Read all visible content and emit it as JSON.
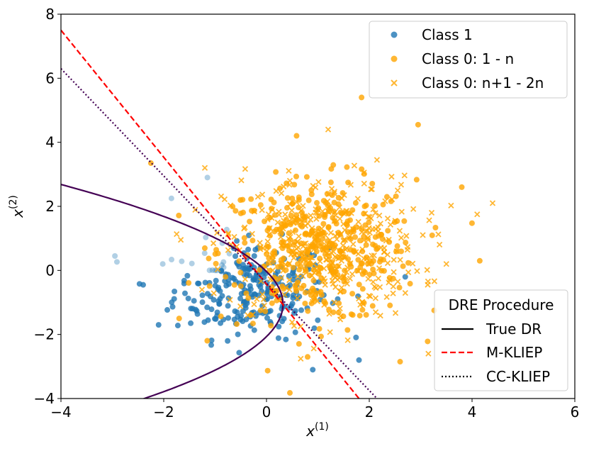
{
  "chart_data": {
    "type": "scatter",
    "xlabel_base": "x",
    "xlabel_sup": "(1)",
    "ylabel_base": "x",
    "ylabel_sup": "(2)",
    "xlim": [
      -4,
      6
    ],
    "ylim": [
      -4,
      8
    ],
    "xticks": [
      -4,
      -2,
      0,
      2,
      4,
      6
    ],
    "yticks": [
      -4,
      -2,
      0,
      2,
      4,
      6,
      8
    ],
    "xtick_labels": [
      "−4",
      "−2",
      "0",
      "2",
      "4",
      "6"
    ],
    "ytick_labels": [
      "−4",
      "−2",
      "0",
      "2",
      "4",
      "6",
      "8"
    ],
    "colors": {
      "class1": "#1f77b4",
      "class0": "#ffa500",
      "true_dr": "#440154",
      "m_kliep": "#ff0000",
      "cc_kliep": "#440154"
    },
    "series": [
      {
        "name": "Class 1",
        "marker": "circle",
        "center": [
          -0.3,
          -0.6
        ],
        "spread": [
          0.75,
          0.75
        ],
        "count": 260,
        "fixed_points": [
          [
            -2.95,
            0.45
          ],
          [
            -1.85,
            2.25
          ],
          [
            -1.15,
            2.9
          ],
          [
            0.9,
            -3.1
          ],
          [
            1.8,
            -2.8
          ],
          [
            2.7,
            -0.2
          ],
          [
            -2.4,
            -0.45
          ],
          [
            -2.1,
            -1.7
          ]
        ]
      },
      {
        "name": "Class 0: 1 - n",
        "marker": "circle",
        "center": [
          1.0,
          0.6
        ],
        "spread": [
          0.95,
          1.1
        ],
        "count": 380,
        "fixed_points": [
          [
            1.85,
            5.4
          ],
          [
            2.95,
            4.55
          ],
          [
            3.8,
            2.6
          ],
          [
            4.15,
            0.3
          ],
          [
            -2.25,
            3.35
          ],
          [
            -1.7,
            -1.5
          ],
          [
            0.8,
            -2.7
          ],
          [
            2.6,
            -2.85
          ]
        ]
      },
      {
        "name": "Class 0: n+1 - 2n",
        "marker": "x",
        "center": [
          1.1,
          0.7
        ],
        "spread": [
          0.95,
          1.1
        ],
        "count": 380,
        "fixed_points": [
          [
            4.4,
            2.1
          ],
          [
            4.1,
            1.75
          ],
          [
            3.15,
            -2.6
          ],
          [
            1.2,
            4.4
          ],
          [
            3.5,
            0.2
          ],
          [
            -1.2,
            3.2
          ],
          [
            2.15,
            3.45
          ]
        ]
      }
    ],
    "lines": [
      {
        "name": "True DR",
        "style": "solid",
        "shape": "parabola_x_eq",
        "coeffs": {
          "a": -0.31,
          "y0": -1.05,
          "x0": 0.32
        }
      },
      {
        "name": "M-KLIEP",
        "style": "dashed",
        "points": [
          [
            -4,
            7.5
          ],
          [
            1.8,
            -4
          ]
        ]
      },
      {
        "name": "CC-KLIEP",
        "style": "dotted",
        "points": [
          [
            -4,
            6.3
          ],
          [
            2.15,
            -4
          ]
        ]
      }
    ],
    "legend_points": {
      "position": "top-right",
      "entries": [
        "Class 1",
        "Class 0: 1 - n",
        "Class 0: n+1 - 2n"
      ]
    },
    "legend_lines": {
      "position": "bottom-right",
      "title": "DRE Procedure",
      "entries": [
        "True DR",
        "M-KLIEP",
        "CC-KLIEP"
      ]
    }
  }
}
